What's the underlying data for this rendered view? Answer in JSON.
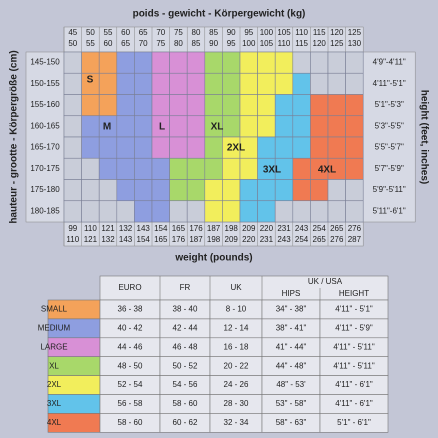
{
  "grid": {
    "title": "poids - gewicht - Körpergewicht (kg)",
    "kg": [
      [
        45,
        50
      ],
      [
        50,
        55
      ],
      [
        55,
        60
      ],
      [
        60,
        65
      ],
      [
        65,
        70
      ],
      [
        70,
        75
      ],
      [
        75,
        80
      ],
      [
        80,
        85
      ],
      [
        85,
        90
      ],
      [
        90,
        95
      ],
      [
        95,
        100
      ],
      [
        100,
        105
      ],
      [
        105,
        110
      ],
      [
        110,
        115
      ],
      [
        115,
        120
      ],
      [
        120,
        125
      ],
      [
        125,
        130
      ]
    ],
    "lbs": [
      [
        99,
        110
      ],
      [
        110,
        121
      ],
      [
        121,
        132
      ],
      [
        132,
        143
      ],
      [
        143,
        154
      ],
      [
        154,
        165
      ],
      [
        165,
        176
      ],
      [
        176,
        187
      ],
      [
        187,
        198
      ],
      [
        198,
        209
      ],
      [
        209,
        220
      ],
      [
        220,
        231
      ],
      [
        231,
        243
      ],
      [
        243,
        254
      ],
      [
        254,
        265
      ],
      [
        265,
        276
      ],
      [
        276,
        287
      ]
    ],
    "cm": [
      "145-150",
      "150-155",
      "155-160",
      "160-165",
      "165-170",
      "170-175",
      "175-180",
      "180-185"
    ],
    "ft": [
      "4'9\"-4'11\"",
      "4'11\"-5'1\"",
      "5'1\"-5'3\"",
      "5'3\"-5'5\"",
      "5'5\"-5'7\"",
      "5'7\"-5'9\"",
      "5'9\"-5'11\"",
      "5'11\"-6'1\""
    ],
    "y_label": "hauteur - grootte - Körpergröße (cm)",
    "y2_label": "height (feet, inches)",
    "x_label": "weight (pounds)",
    "cells": [
      [
        "#c9cdd9",
        "#f4a25a",
        "#f4a25a",
        "#8e9ee0",
        "#8e9ee0",
        "#d890d6",
        "#d890d6",
        "#d890d6",
        "#a8d86a",
        "#a8d86a",
        "#f2ee5c",
        "#f2ee5c",
        "#f2ee5c",
        "#c9cdd9",
        "#c9cdd9",
        "#c9cdd9",
        "#c9cdd9"
      ],
      [
        "#c9cdd9",
        "#f4a25a",
        "#f4a25a",
        "#8e9ee0",
        "#8e9ee0",
        "#d890d6",
        "#d890d6",
        "#d890d6",
        "#a8d86a",
        "#a8d86a",
        "#f2ee5c",
        "#f2ee5c",
        "#f2ee5c",
        "#62c3ea",
        "#c9cdd9",
        "#c9cdd9",
        "#c9cdd9"
      ],
      [
        "#c9cdd9",
        "#f4a25a",
        "#f4a25a",
        "#8e9ee0",
        "#8e9ee0",
        "#d890d6",
        "#d890d6",
        "#d890d6",
        "#a8d86a",
        "#a8d86a",
        "#f2ee5c",
        "#f2ee5c",
        "#62c3ea",
        "#62c3ea",
        "#f07a52",
        "#f07a52",
        "#f07a52"
      ],
      [
        "#c9cdd9",
        "#8e9ee0",
        "#8e9ee0",
        "#8e9ee0",
        "#8e9ee0",
        "#d890d6",
        "#d890d6",
        "#d890d6",
        "#a8d86a",
        "#a8d86a",
        "#f2ee5c",
        "#f2ee5c",
        "#62c3ea",
        "#62c3ea",
        "#f07a52",
        "#f07a52",
        "#f07a52"
      ],
      [
        "#c9cdd9",
        "#8e9ee0",
        "#8e9ee0",
        "#8e9ee0",
        "#8e9ee0",
        "#d890d6",
        "#d890d6",
        "#d890d6",
        "#a8d86a",
        "#f2ee5c",
        "#f2ee5c",
        "#62c3ea",
        "#62c3ea",
        "#62c3ea",
        "#f07a52",
        "#f07a52",
        "#f07a52"
      ],
      [
        "#c9cdd9",
        "#c9cdd9",
        "#8e9ee0",
        "#8e9ee0",
        "#8e9ee0",
        "#8e9ee0",
        "#a8d86a",
        "#a8d86a",
        "#a8d86a",
        "#f2ee5c",
        "#f2ee5c",
        "#62c3ea",
        "#62c3ea",
        "#f07a52",
        "#f07a52",
        "#f07a52",
        "#f07a52"
      ],
      [
        "#c9cdd9",
        "#c9cdd9",
        "#c9cdd9",
        "#8e9ee0",
        "#8e9ee0",
        "#8e9ee0",
        "#a8d86a",
        "#a8d86a",
        "#f2ee5c",
        "#f2ee5c",
        "#62c3ea",
        "#62c3ea",
        "#62c3ea",
        "#f07a52",
        "#f07a52",
        "#c9cdd9",
        "#c9cdd9"
      ],
      [
        "#c9cdd9",
        "#c9cdd9",
        "#c9cdd9",
        "#c9cdd9",
        "#8e9ee0",
        "#8e9ee0",
        "#c9cdd9",
        "#c9cdd9",
        "#f2ee5c",
        "#f2ee5c",
        "#62c3ea",
        "#62c3ea",
        "#c9cdd9",
        "#c9cdd9",
        "#c9cdd9",
        "#c9cdd9",
        "#c9cdd9"
      ]
    ],
    "size_labels": [
      "S",
      "M",
      "L",
      "XL",
      "2XL",
      "3XL",
      "4XL"
    ]
  },
  "table": {
    "headers": [
      "EURO",
      "FR",
      "UK"
    ],
    "group_header": "UK / USA",
    "sub_headers": [
      "HIPS",
      "HEIGHT"
    ],
    "rows": [
      {
        "label": "SMALL",
        "color": "#f4a25a",
        "cells": [
          "36 - 38",
          "38 - 40",
          "8 - 10",
          "34\" - 38\"",
          "4'11\" - 5'1\""
        ]
      },
      {
        "label": "MEDIUM",
        "color": "#8e9ee0",
        "cells": [
          "40 - 42",
          "42 - 44",
          "12 - 14",
          "38\" - 41\"",
          "4'11\" - 5'9\""
        ]
      },
      {
        "label": "LARGE",
        "color": "#d890d6",
        "cells": [
          "44 - 46",
          "46 - 48",
          "16 - 18",
          "41\" - 44\"",
          "4'11\" - 5'11\""
        ]
      },
      {
        "label": "XL",
        "color": "#a8d86a",
        "cells": [
          "48 - 50",
          "50 - 52",
          "20 - 22",
          "44\" - 48\"",
          "4'11\" - 5'11\""
        ]
      },
      {
        "label": "2XL",
        "color": "#f2ee5c",
        "cells": [
          "52 - 54",
          "54 - 56",
          "24 - 26",
          "48\" - 53'",
          "4'11\" - 6'1\""
        ]
      },
      {
        "label": "3XL",
        "color": "#62c3ea",
        "cells": [
          "56 - 58",
          "58 - 60",
          "28 - 30",
          "53\" - 58\"",
          "4'11\" - 6'1\""
        ]
      },
      {
        "label": "4XL",
        "color": "#f07a52",
        "cells": [
          "58 - 60",
          "60 - 62",
          "32 - 34",
          "58\" - 63\"",
          "5'1\" - 6'1\""
        ]
      }
    ]
  }
}
